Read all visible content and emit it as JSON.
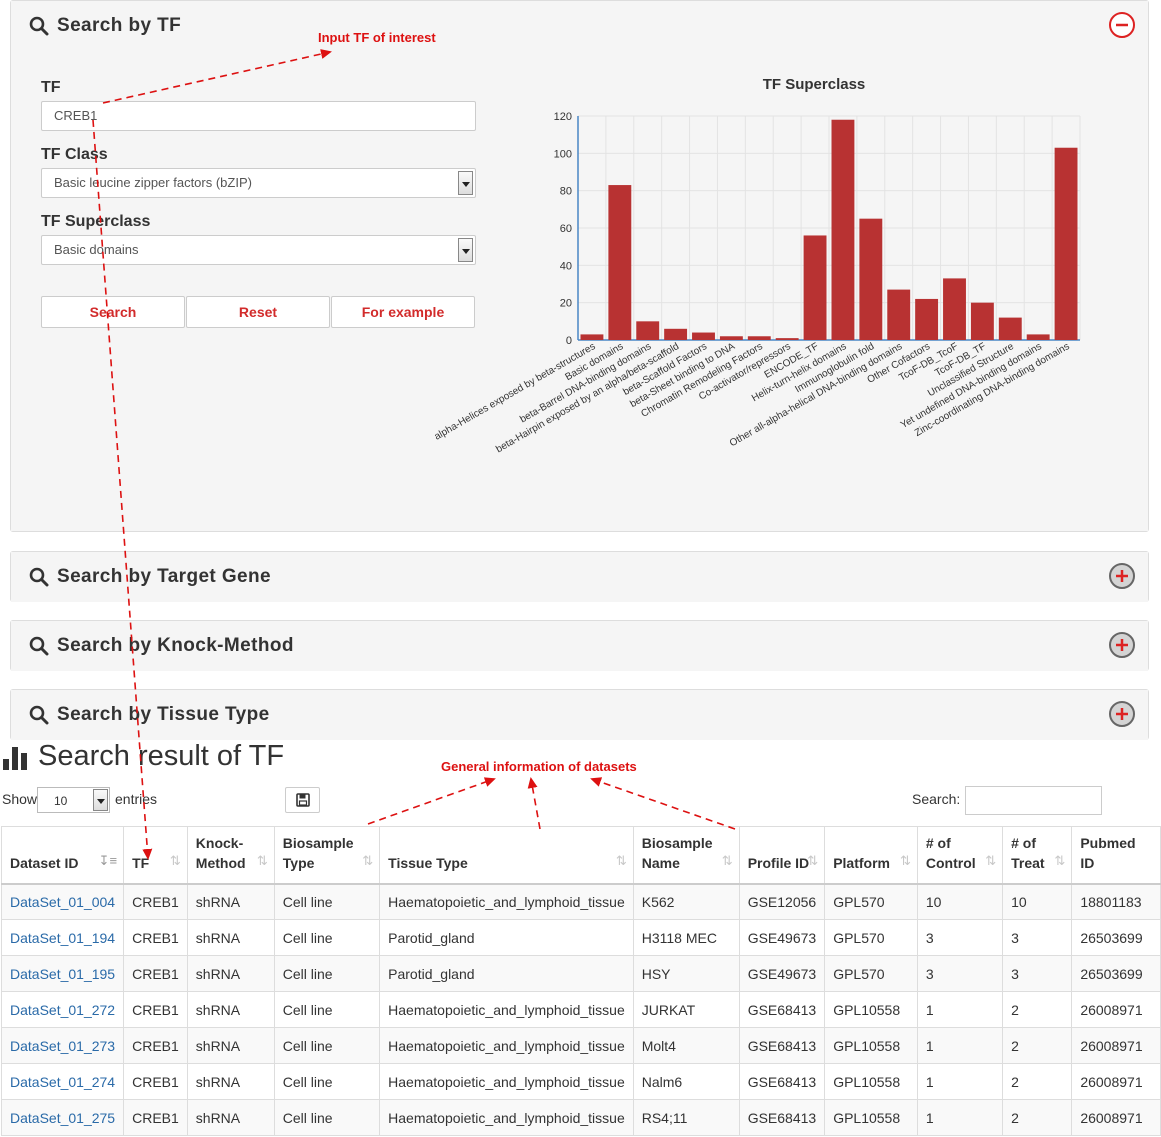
{
  "panels": {
    "tf": {
      "title": "Search by TF"
    },
    "target_gene": {
      "title": "Search by Target Gene"
    },
    "knock_method": {
      "title": "Search by Knock-Method"
    },
    "tissue_type": {
      "title": "Search by Tissue Type"
    }
  },
  "form": {
    "tf_label": "TF",
    "tf_value": "CREB1",
    "class_label": "TF Class",
    "class_value": "Basic leucine zipper factors (bZIP)",
    "superclass_label": "TF Superclass",
    "superclass_value": "Basic domains",
    "search_btn": "Search",
    "reset_btn": "Reset",
    "example_btn": "For example"
  },
  "chart_data": {
    "type": "bar",
    "title": "TF Superclass",
    "xlabel": "",
    "ylabel": "",
    "ylim": [
      0,
      120
    ],
    "yticks": [
      0,
      20,
      40,
      60,
      80,
      100,
      120
    ],
    "grid": true,
    "bar_color": "#b83232",
    "categories": [
      "alpha-Helices exposed by beta-structures",
      "Basic domains",
      "beta-Barrel DNA-binding domains",
      "beta-Hairpin exposed by an alpha/beta-scaffold",
      "beta-Scaffold Factors",
      "beta-Sheet binding to DNA",
      "Chromatin Remodeling Factors",
      "Co-activator/repressors",
      "ENCODE_TF",
      "Helix-turn-helix domains",
      "Immunoglobulin fold",
      "Other all-alpha-helical DNA-binding domains",
      "Other Cofactors",
      "TcoF-DB_TcoF",
      "TcoF-DB_TF",
      "Unclassified Structure",
      "Yet undefined DNA-binding domains",
      "Zinc-coordinating DNA-binding domains"
    ],
    "values": [
      3,
      83,
      10,
      6,
      4,
      2,
      2,
      1,
      56,
      118,
      65,
      27,
      22,
      33,
      20,
      12,
      3,
      103
    ]
  },
  "results": {
    "title": "Search result of TF",
    "show_label": "Show",
    "page_length": "10",
    "entries_label": "entries",
    "search_label": "Search:",
    "columns": [
      "Dataset ID",
      "TF",
      "Knock-Method",
      "Biosample Type",
      "Tissue Type",
      "Biosample Name",
      "Profile ID",
      "Platform",
      "# of Control",
      "# of Treat",
      "Pubmed ID"
    ],
    "rows": [
      [
        "DataSet_01_004",
        "CREB1",
        "shRNA",
        "Cell line",
        "Haematopoietic_and_lymphoid_tissue",
        "K562",
        "GSE12056",
        "GPL570",
        "10",
        "10",
        "18801183"
      ],
      [
        "DataSet_01_194",
        "CREB1",
        "shRNA",
        "Cell line",
        "Parotid_gland",
        "H3118 MEC",
        "GSE49673",
        "GPL570",
        "3",
        "3",
        "26503699"
      ],
      [
        "DataSet_01_195",
        "CREB1",
        "shRNA",
        "Cell line",
        "Parotid_gland",
        "HSY",
        "GSE49673",
        "GPL570",
        "3",
        "3",
        "26503699"
      ],
      [
        "DataSet_01_272",
        "CREB1",
        "shRNA",
        "Cell line",
        "Haematopoietic_and_lymphoid_tissue",
        "JURKAT",
        "GSE68413",
        "GPL10558",
        "1",
        "2",
        "26008971"
      ],
      [
        "DataSet_01_273",
        "CREB1",
        "shRNA",
        "Cell line",
        "Haematopoietic_and_lymphoid_tissue",
        "Molt4",
        "GSE68413",
        "GPL10558",
        "1",
        "2",
        "26008971"
      ],
      [
        "DataSet_01_274",
        "CREB1",
        "shRNA",
        "Cell line",
        "Haematopoietic_and_lymphoid_tissue",
        "Nalm6",
        "GSE68413",
        "GPL10558",
        "1",
        "2",
        "26008971"
      ],
      [
        "DataSet_01_275",
        "CREB1",
        "shRNA",
        "Cell line",
        "Haematopoietic_and_lymphoid_tissue",
        "RS4;11",
        "GSE68413",
        "GPL10558",
        "1",
        "2",
        "26008971"
      ]
    ]
  },
  "annotations": {
    "input_tf": "Input TF of interest",
    "general_info": "General information of datasets",
    "color": "#dd1111"
  }
}
